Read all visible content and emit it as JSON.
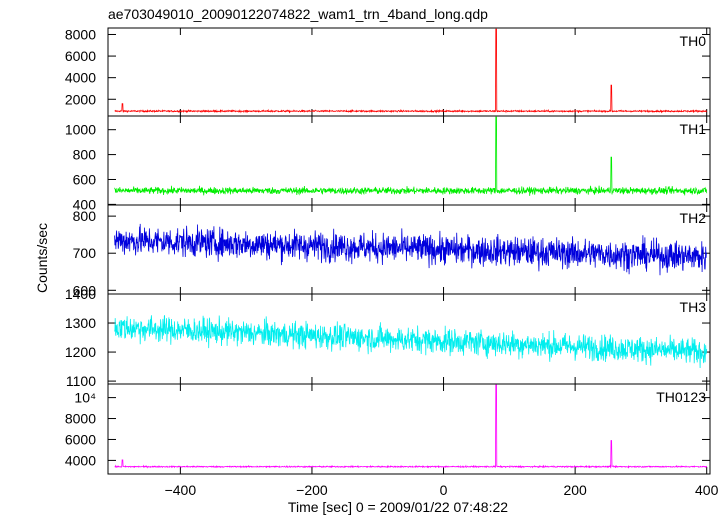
{
  "chart_data": {
    "type": "line",
    "title": "ae703049010_20090122074822_wam1_trn_4band_long.qdp",
    "xlabel": "Time [sec] 0 = 2009/01/22 07:48:22",
    "ylabel": "Counts/sec",
    "xlim": [
      -510,
      405
    ],
    "xticks": [
      -400,
      -200,
      0,
      200,
      400
    ],
    "panels": [
      {
        "name": "TH0",
        "color": "#ff0000",
        "ylim": [
          450,
          8600
        ],
        "yticks": [
          2000,
          4000,
          6000,
          8000
        ],
        "ytick_labels": [
          "2000",
          "4000",
          "6000",
          "8000"
        ],
        "baseline": 900,
        "noise": 70,
        "spikes": [
          [
            -488,
            1600
          ],
          [
            80,
            8500
          ],
          [
            255,
            3300
          ]
        ]
      },
      {
        "name": "TH1",
        "color": "#00ee00",
        "ylim": [
          395,
          1110
        ],
        "yticks": [
          400,
          600,
          800,
          1000
        ],
        "ytick_labels": [
          "400",
          "600",
          "800",
          "1000"
        ],
        "baseline": 510,
        "noise": 28,
        "spikes": [
          [
            80,
            1100
          ],
          [
            255,
            780
          ]
        ]
      },
      {
        "name": "TH2",
        "color": "#0000dd",
        "ylim": [
          590,
          830
        ],
        "yticks": [
          600,
          700,
          800
        ],
        "ytick_labels": [
          "600",
          "700",
          "800"
        ],
        "baseline": 735,
        "trend": -45,
        "noise": 40,
        "spikes": []
      },
      {
        "name": "TH3",
        "color": "#00eeee",
        "ylim": [
          1090,
          1400
        ],
        "yticks": [
          1100,
          1200,
          1300,
          1400
        ],
        "ytick_labels": [
          "1100",
          "1200",
          "1300",
          "1400"
        ],
        "baseline": 1285,
        "trend": -85,
        "noise": 45,
        "spikes": []
      },
      {
        "name": "TH0123",
        "color": "#ff00ff",
        "ylim": [
          2700,
          11300
        ],
        "yticks": [
          4000,
          6000,
          8000,
          10000
        ],
        "ytick_labels": [
          "4000",
          "6000",
          "8000",
          "10⁴"
        ],
        "baseline": 3400,
        "noise": 60,
        "spikes": [
          [
            -488,
            4050
          ],
          [
            80,
            11200
          ],
          [
            255,
            5900
          ]
        ]
      }
    ]
  }
}
